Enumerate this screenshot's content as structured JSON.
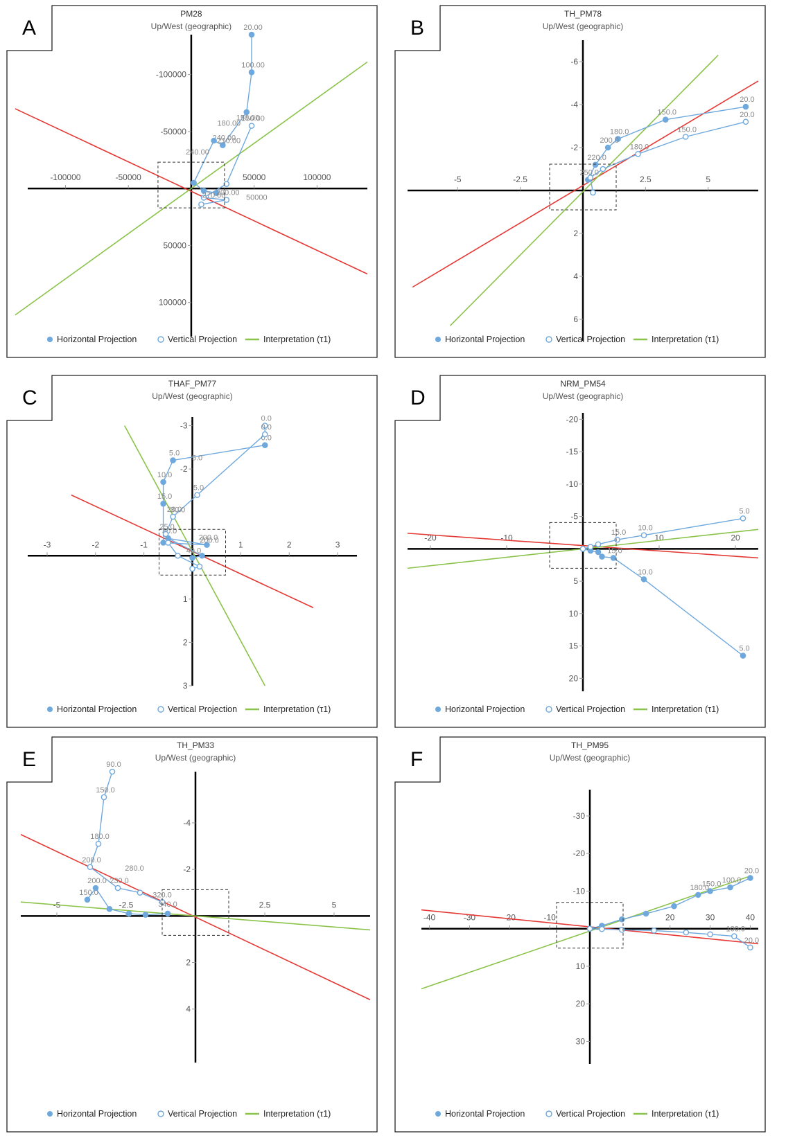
{
  "legend": {
    "horizontal": "Horizontal Projection",
    "vertical": "Vertical Projection",
    "interpretation": "Interpretation (τ1)"
  },
  "colors": {
    "horizontal": "#6fa8dc",
    "vertical": "#6fa8dc",
    "interpretation": "#8bc34a",
    "great_circle": "#e53935",
    "axis": "#000000",
    "tick_text": "#555555"
  },
  "chart_data": [
    {
      "letter": "A",
      "type": "scatter",
      "title": "PM28",
      "subtitle": "Up/West (geographic)",
      "xlim": [
        -130000,
        140000
      ],
      "ylim": [
        130000,
        -135000
      ],
      "x_ticks": [
        -100000,
        -50000,
        50000,
        100000
      ],
      "y_ticks": [
        -100000,
        -50000,
        50000,
        100000
      ],
      "x_tick_labels": [
        "-100000",
        "-50000",
        "50000",
        "100000"
      ],
      "y_tick_labels": [
        "-100000",
        "-50000",
        "50000",
        "100000"
      ],
      "horizontal": {
        "x": [
          48000,
          48000,
          44000,
          25000,
          18000,
          2000,
          10000,
          20000
        ],
        "y": [
          -135000,
          -102000,
          -67000,
          -38000,
          -42000,
          -5000,
          2000,
          4000
        ],
        "labels": [
          "20.00",
          "100.00",
          "",
          "240.00",
          "",
          "",
          "",
          ""
        ]
      },
      "vertical": {
        "x": [
          48000,
          28000,
          10000,
          28000,
          8000
        ],
        "y": [
          -55000,
          -4000,
          8000,
          10000,
          14000
        ],
        "labels": [
          "150.00",
          "",
          "",
          "200.00",
          ""
        ]
      },
      "free_labels": [
        {
          "text": "180.00",
          "x": 30000,
          "y": -55000
        },
        {
          "text": "210.00",
          "x": 30000,
          "y": -40000
        },
        {
          "text": "240.00",
          "x": 5000,
          "y": -30000
        },
        {
          "text": "150.00",
          "x": 45000,
          "y": -60000
        },
        {
          "text": "50000",
          "x": 52000,
          "y": 10000
        },
        {
          "text": "270.00",
          "x": 18000,
          "y": 8000
        }
      ],
      "interpretation": {
        "x": [
          -140000,
          140000
        ],
        "y": [
          111000,
          -111000
        ]
      },
      "great_circle": {
        "x": [
          -140000,
          140000
        ],
        "y": [
          -70000,
          75000
        ]
      }
    },
    {
      "letter": "B",
      "type": "scatter",
      "title": "TH_PM78",
      "subtitle": "Up/West (geographic)",
      "xlim": [
        -7,
        7
      ],
      "ylim": [
        7,
        -7
      ],
      "x_ticks": [
        -5,
        -2.5,
        2.5,
        5
      ],
      "y_ticks": [
        -6,
        -4,
        -2,
        2,
        4,
        6
      ],
      "x_tick_labels": [
        "-5",
        "-2.5",
        "2.5",
        "5"
      ],
      "y_tick_labels": [
        "-6",
        "-4",
        "-2",
        "2",
        "4",
        "6"
      ],
      "horizontal": {
        "x": [
          6.5,
          3.3,
          1.4,
          1.0,
          0.5,
          0.2
        ],
        "y": [
          -3.9,
          -3.3,
          -2.4,
          -2.0,
          -1.2,
          -0.5
        ],
        "labels": [
          "20.0",
          "150.0",
          "180.0",
          "200.0",
          "220.0",
          "250.0"
        ]
      },
      "vertical": {
        "x": [
          6.5,
          4.1,
          2.2,
          0.8,
          0.3,
          0.4
        ],
        "y": [
          -3.2,
          -2.5,
          -1.7,
          -1.0,
          -0.6,
          0.1
        ],
        "labels": [
          "20.0",
          "150.0",
          "180.0",
          "",
          "",
          ""
        ]
      },
      "free_labels": [],
      "interpretation": {
        "x": [
          -5.3,
          5.4
        ],
        "y": [
          6.3,
          -6.3
        ]
      },
      "great_circle": {
        "x": [
          -6.8,
          7.0
        ],
        "y": [
          4.5,
          -5.1
        ]
      }
    },
    {
      "letter": "C",
      "type": "scatter",
      "title": "THAF_PM77",
      "subtitle": "Up/West (geographic)",
      "xlim": [
        -3.4,
        3.4
      ],
      "ylim": [
        3,
        -3.2
      ],
      "x_ticks": [
        -3,
        -2,
        -1,
        1,
        2,
        3
      ],
      "y_ticks": [
        -3,
        -2,
        1,
        2,
        3
      ],
      "x_tick_labels": [
        "-3",
        "-2",
        "-1",
        "1",
        "2",
        "3"
      ],
      "y_tick_labels": [
        "-3",
        "-2",
        "1",
        "2",
        "3"
      ],
      "horizontal": {
        "x": [
          1.5,
          -0.4,
          -0.6,
          -0.6,
          -0.6,
          0.3,
          -0.5,
          0.2,
          0.0
        ],
        "y": [
          -2.55,
          -2.2,
          -1.7,
          -1.2,
          -0.3,
          -0.25,
          -0.4,
          0.0,
          0.05
        ],
        "labels": [
          "0.0",
          "5.0",
          "10.0",
          "15.0",
          "",
          "200.0",
          "30.0",
          "",
          "40.0"
        ]
      },
      "vertical": {
        "x": [
          1.5,
          1.5,
          0.1,
          -0.4,
          -0.55,
          -0.5,
          -0.3,
          0.15,
          0.0
        ],
        "y": [
          -3.0,
          -2.8,
          -1.4,
          -0.9,
          -0.5,
          -0.3,
          0.0,
          0.25,
          0.3
        ],
        "labels": [
          "0.0",
          "0.0",
          "5.0",
          "20.0",
          "25.0",
          "",
          "",
          "",
          ""
        ]
      },
      "free_labels": [
        {
          "text": "5.0",
          "x": 0.1,
          "y": -2.2
        },
        {
          "text": "30.0",
          "x": -0.3,
          "y": -1.0
        },
        {
          "text": "200.0",
          "x": 0.35,
          "y": -0.3
        }
      ],
      "interpretation": {
        "x": [
          -1.4,
          1.5
        ],
        "y": [
          -3.0,
          3.0
        ]
      },
      "great_circle": {
        "x": [
          -2.5,
          2.5
        ],
        "y": [
          -1.4,
          1.2
        ]
      }
    },
    {
      "letter": "D",
      "type": "scatter",
      "title": "NRM_PM54",
      "subtitle": "Up/West (geographic)",
      "xlim": [
        -23,
        23
      ],
      "ylim": [
        22,
        -21
      ],
      "x_ticks": [
        -20,
        -10,
        10,
        20
      ],
      "y_ticks": [
        -20,
        -15,
        -10,
        -5,
        5,
        10,
        15,
        20
      ],
      "x_tick_labels": [
        "-20",
        "-10",
        "10",
        "20"
      ],
      "y_tick_labels": [
        "-20",
        "-15",
        "-10",
        "-5",
        "5",
        "10",
        "15",
        "20"
      ],
      "horizontal": {
        "x": [
          21,
          8,
          4,
          2.5,
          2,
          1,
          0
        ],
        "y": [
          16.5,
          4.7,
          1.4,
          1.2,
          0.5,
          0.3,
          0
        ],
        "labels": [
          "5.0",
          "10.0",
          "15.0",
          "",
          "",
          "",
          ""
        ]
      },
      "vertical": {
        "x": [
          21,
          8,
          4.5,
          2,
          1,
          0
        ],
        "y": [
          -4.7,
          -2.1,
          -1.4,
          -0.7,
          -0.3,
          0
        ],
        "labels": [
          "5.0",
          "10.0",
          "15.0",
          "",
          "",
          ""
        ]
      },
      "free_labels": [],
      "interpretation": {
        "x": [
          -23,
          23
        ],
        "y": [
          3.0,
          -3.0
        ]
      },
      "great_circle": {
        "x": [
          -23,
          23
        ],
        "y": [
          -2.4,
          1.4
        ]
      }
    },
    {
      "letter": "E",
      "type": "scatter",
      "title": "TH_PM33",
      "subtitle": "Up/West (geographic)",
      "xlim": [
        -6.3,
        6.3
      ],
      "ylim": [
        6.3,
        -6.2
      ],
      "x_ticks": [
        -5,
        -2.5,
        2.5,
        5
      ],
      "y_ticks": [
        -4,
        -2,
        2,
        4
      ],
      "x_tick_labels": [
        "-5",
        "-2.5",
        "2.5",
        "5"
      ],
      "y_tick_labels": [
        "-4",
        "-2",
        "2",
        "4"
      ],
      "horizontal": {
        "x": [
          -3.9,
          -3.6,
          -3.1,
          -2.4,
          -1.8,
          -1.0
        ],
        "y": [
          -0.7,
          -1.2,
          -0.3,
          -0.1,
          -0.05,
          -0.1
        ],
        "labels": [
          "150.0",
          "200.0",
          "",
          "",
          "",
          ""
        ]
      },
      "vertical": {
        "x": [
          -3.0,
          -3.3,
          -3.5,
          -3.8,
          -2.8,
          -2.0,
          -1.2
        ],
        "y": [
          -6.2,
          -5.1,
          -3.1,
          -2.1,
          -1.2,
          -1.0,
          -0.6
        ],
        "labels": [
          "90.0",
          "150.0",
          "180.0",
          "200.0",
          "230.0",
          "",
          ""
        ]
      },
      "free_labels": [
        {
          "text": "280.0",
          "x": -2.2,
          "y": -1.95
        },
        {
          "text": "320.0",
          "x": -1.2,
          "y": -0.8
        },
        {
          "text": "340.0",
          "x": -1.0,
          "y": -0.4
        }
      ],
      "interpretation": {
        "x": [
          -6.3,
          6.3
        ],
        "y": [
          -0.6,
          0.6
        ]
      },
      "great_circle": {
        "x": [
          -6.3,
          6.3
        ],
        "y": [
          -3.5,
          3.6
        ]
      }
    },
    {
      "letter": "F",
      "type": "scatter",
      "title": "TH_PM95",
      "subtitle": "Up/West (geographic)",
      "xlim": [
        -42,
        42
      ],
      "ylim": [
        36,
        -37
      ],
      "x_ticks": [
        -40,
        -30,
        -20,
        -10,
        20,
        30,
        40
      ],
      "y_ticks": [
        -30,
        -20,
        -10,
        10,
        20,
        30
      ],
      "x_tick_labels": [
        "-40",
        "-30",
        "-20",
        "-10",
        "20",
        "30",
        "40"
      ],
      "y_tick_labels": [
        "-30",
        "-20",
        "-10",
        "10",
        "20",
        "30"
      ],
      "horizontal": {
        "x": [
          40,
          35,
          30,
          27,
          21,
          14,
          8,
          3,
          0
        ],
        "y": [
          -13.5,
          -11,
          -10,
          -9,
          -6,
          -4,
          -2.5,
          -0.8,
          0
        ],
        "labels": [
          "20.0",
          "100.0",
          "150.0",
          "180.0",
          "",
          "",
          "",
          "",
          ""
        ]
      },
      "vertical": {
        "x": [
          40,
          36,
          30,
          24,
          16,
          8,
          3,
          0
        ],
        "y": [
          5,
          2,
          1.5,
          1.0,
          0.5,
          0.3,
          0.1,
          0
        ],
        "labels": [
          "20.0",
          "100.0",
          "",
          "",
          "",
          "",
          "",
          ""
        ]
      },
      "free_labels": [],
      "interpretation": {
        "x": [
          -42,
          40
        ],
        "y": [
          16,
          -14
        ]
      },
      "great_circle": {
        "x": [
          -42,
          42
        ],
        "y": [
          -5,
          4
        ]
      }
    }
  ]
}
